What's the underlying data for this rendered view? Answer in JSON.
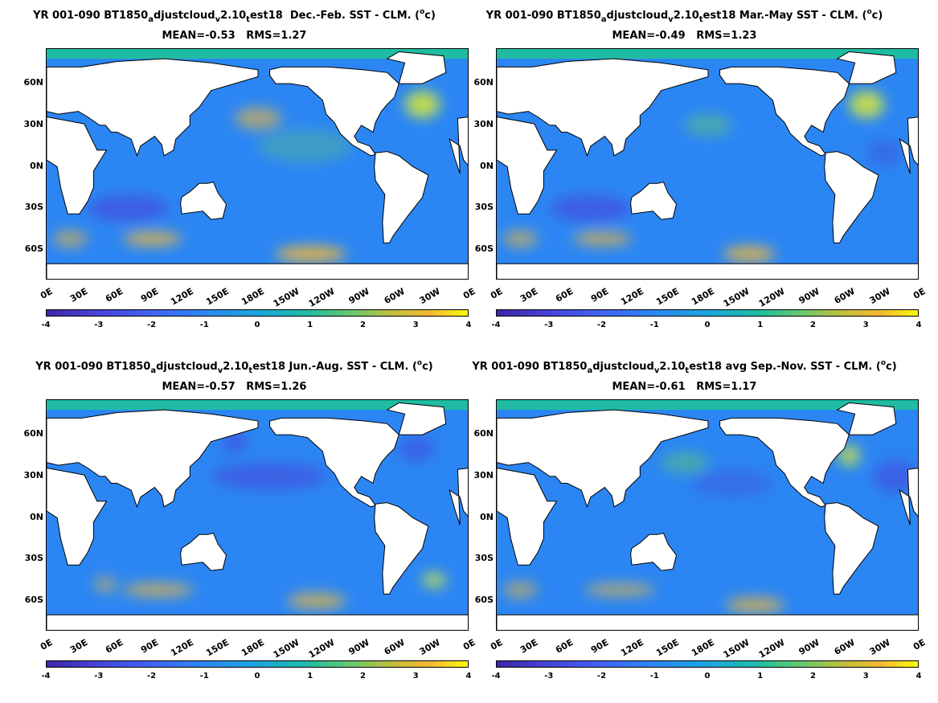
{
  "panels": [
    {
      "title_prefix": "YR 001-090 BT1850",
      "title_sub1": "a",
      "title_mid1": "djustcloud",
      "title_sub2": "v",
      "title_mid2": "2.10",
      "title_sub3": "t",
      "title_suffix": "est18  Dec.-Feb. SST - CLM. (",
      "title_sup": "o",
      "title_unit": "c)",
      "stats": "MEAN=-0.53   RMS=1.27"
    },
    {
      "title_prefix": "YR 001-090 BT1850",
      "title_sub1": "a",
      "title_mid1": "djustcloud",
      "title_sub2": "v",
      "title_mid2": "2.10",
      "title_sub3": "t",
      "title_suffix": "est18 Mar.-May SST - CLM. (",
      "title_sup": "o",
      "title_unit": "c)",
      "stats": "MEAN=-0.49   RMS=1.23"
    },
    {
      "title_prefix": "YR 001-090 BT1850",
      "title_sub1": "a",
      "title_mid1": "djustcloud",
      "title_sub2": "v",
      "title_mid2": "2.10",
      "title_sub3": "t",
      "title_suffix": "est18 Jun.-Aug. SST - CLM. (",
      "title_sup": "o",
      "title_unit": "c)",
      "stats": "MEAN=-0.57   RMS=1.26"
    },
    {
      "title_prefix": "YR 001-090 BT1850",
      "title_sub1": "a",
      "title_mid1": "djustcloud",
      "title_sub2": "v",
      "title_mid2": "2.10",
      "title_sub3": "t",
      "title_suffix": "est18 avg Sep.-Nov. SST - CLM. (",
      "title_sup": "o",
      "title_unit": "c)",
      "stats": "MEAN=-0.61   RMS=1.17"
    }
  ],
  "y_ticks": [
    "60N",
    "30N",
    "0N",
    "30S",
    "60S"
  ],
  "x_ticks": [
    "0E",
    "30E",
    "60E",
    "90E",
    "120E",
    "150E",
    "180E",
    "150W",
    "120W",
    "90W",
    "60W",
    "30W",
    "0E"
  ],
  "colorbar_ticks": [
    "-4",
    "-3",
    "-2",
    "-1",
    "0",
    "1",
    "2",
    "3",
    "4"
  ],
  "colors": {
    "land": "#ffffff",
    "ocean_base": "#2b86f4",
    "arctic": "#1fbca3",
    "cold": "#4743d7",
    "warm": "#f5b732",
    "hot": "#f9fb0e",
    "mild": "#65c86d"
  }
}
